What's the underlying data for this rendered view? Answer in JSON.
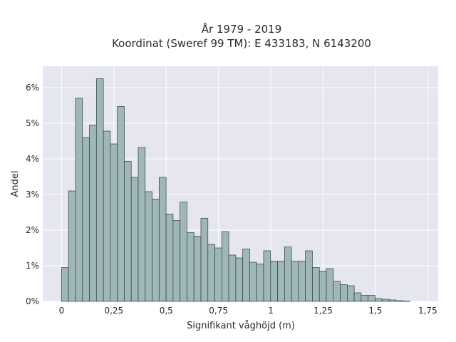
{
  "chart_data": {
    "type": "bar",
    "title_line1": "År 1979 - 2019",
    "title_line2": "Koordinat (Sweref 99 TM): E 433183, N 6143200",
    "xlabel": "Signifikant våghöjd (m)",
    "ylabel": "Andel",
    "xlim": [
      -0.09,
      1.8
    ],
    "ylim": [
      0,
      6.6
    ],
    "grid": true,
    "bin_width": 0.0333,
    "bins_start": 0,
    "values": [
      0.95,
      3.1,
      5.7,
      4.6,
      4.95,
      6.25,
      4.78,
      4.42,
      5.47,
      3.93,
      3.48,
      4.32,
      3.08,
      2.87,
      3.48,
      2.45,
      2.27,
      2.79,
      1.93,
      1.83,
      2.33,
      1.6,
      1.5,
      1.96,
      1.3,
      1.22,
      1.47,
      1.1,
      1.05,
      1.42,
      1.13,
      1.13,
      1.53,
      1.13,
      1.13,
      1.42,
      0.95,
      0.85,
      0.92,
      0.56,
      0.47,
      0.44,
      0.24,
      0.17,
      0.17,
      0.08,
      0.06,
      0.04,
      0.02,
      0.01
    ],
    "x_ticks": [
      {
        "value": 0,
        "label": "0"
      },
      {
        "value": 0.25,
        "label": "0,25"
      },
      {
        "value": 0.5,
        "label": "0,5"
      },
      {
        "value": 0.75,
        "label": "0,75"
      },
      {
        "value": 1,
        "label": "1"
      },
      {
        "value": 1.25,
        "label": "1,25"
      },
      {
        "value": 1.5,
        "label": "1,5"
      },
      {
        "value": 1.75,
        "label": "1,75"
      }
    ],
    "y_ticks": [
      {
        "value": 0,
        "label": "0%"
      },
      {
        "value": 1,
        "label": "1%"
      },
      {
        "value": 2,
        "label": "2%"
      },
      {
        "value": 3,
        "label": "3%"
      },
      {
        "value": 4,
        "label": "4%"
      },
      {
        "value": 5,
        "label": "5%"
      },
      {
        "value": 6,
        "label": "6%"
      }
    ],
    "colors": {
      "plot_background": "#e5e6f0",
      "bar_fill": "#9fb7b7",
      "bar_stroke": "#2f3f3f",
      "grid": "#ffffff"
    }
  }
}
